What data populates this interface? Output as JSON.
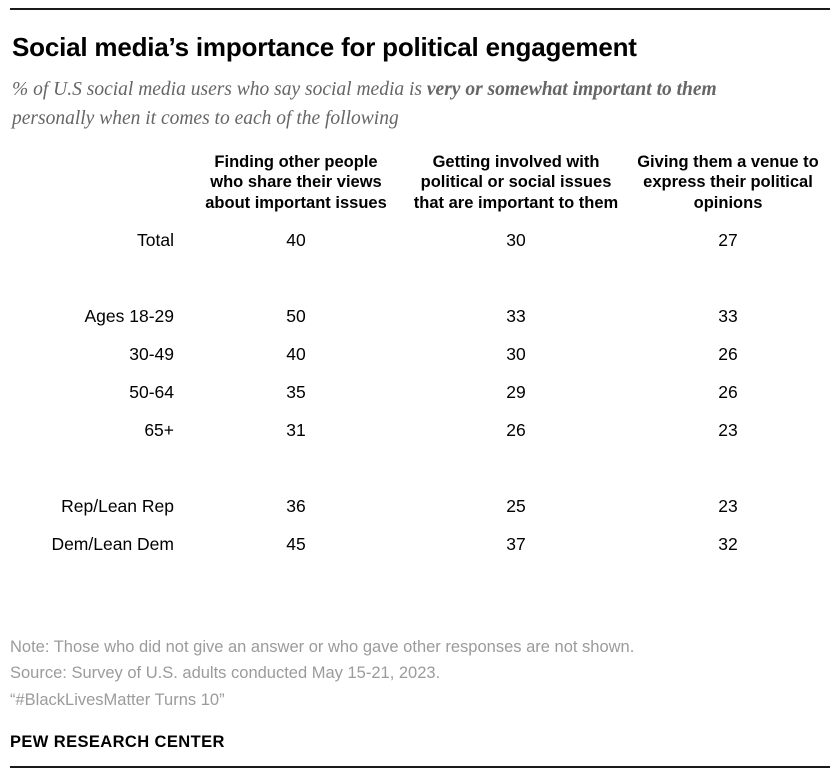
{
  "colors": {
    "title_text": "#000000",
    "subtitle_text": "#666666",
    "note_text": "#9b9b9b",
    "rule": "#1a1a1a"
  },
  "header": {
    "title": "Social media’s importance for political engagement",
    "subtitle_prefix": "% of U.S social media users who say social media is ",
    "subtitle_bold": "very or somewhat important to them",
    "subtitle_suffix": " personally when it comes to each of the following"
  },
  "table": {
    "columns": [
      "Finding other people who share their views about important issues",
      "Getting involved with political or social issues that are important to them",
      "Giving them a venue to express their political opinions"
    ],
    "groups": [
      {
        "rows": [
          {
            "label": "Total",
            "values": [
              40,
              30,
              27
            ]
          }
        ]
      },
      {
        "rows": [
          {
            "label": "Ages 18-29",
            "values": [
              50,
              33,
              33
            ]
          },
          {
            "label": "30-49",
            "values": [
              40,
              30,
              26
            ]
          },
          {
            "label": "50-64",
            "values": [
              35,
              29,
              26
            ]
          },
          {
            "label": "65+",
            "values": [
              31,
              26,
              23
            ]
          }
        ]
      },
      {
        "rows": [
          {
            "label": "Rep/Lean Rep",
            "values": [
              36,
              25,
              23
            ]
          },
          {
            "label": "Dem/Lean Dem",
            "values": [
              45,
              37,
              32
            ]
          }
        ]
      }
    ]
  },
  "footer": {
    "note": "Note: Those who did not give an answer or who gave other responses are not shown.",
    "source": "Source: Survey of U.S. adults conducted May 15-21, 2023.",
    "quote": "“#BlackLivesMatter Turns 10”",
    "brand": "PEW RESEARCH CENTER"
  },
  "chart_data": {
    "type": "table",
    "title": "Social media’s importance for political engagement",
    "subtitle": "% of U.S social media users who say social media is very or somewhat important to them personally when it comes to each of the following",
    "categories": [
      "Total",
      "Ages 18-29",
      "30-49",
      "50-64",
      "65+",
      "Rep/Lean Rep",
      "Dem/Lean Dem"
    ],
    "series": [
      {
        "name": "Finding other people who share their views about important issues",
        "values": [
          40,
          50,
          40,
          35,
          31,
          36,
          45
        ]
      },
      {
        "name": "Getting involved with political or social issues that are important to them",
        "values": [
          30,
          33,
          30,
          29,
          26,
          25,
          37
        ]
      },
      {
        "name": "Giving them a venue to express their political opinions",
        "values": [
          27,
          33,
          26,
          26,
          23,
          23,
          32
        ]
      }
    ],
    "note": "Note: Those who did not give an answer or who gave other responses are not shown.",
    "source": "Source: Survey of U.S. adults conducted May 15-21, 2023."
  }
}
